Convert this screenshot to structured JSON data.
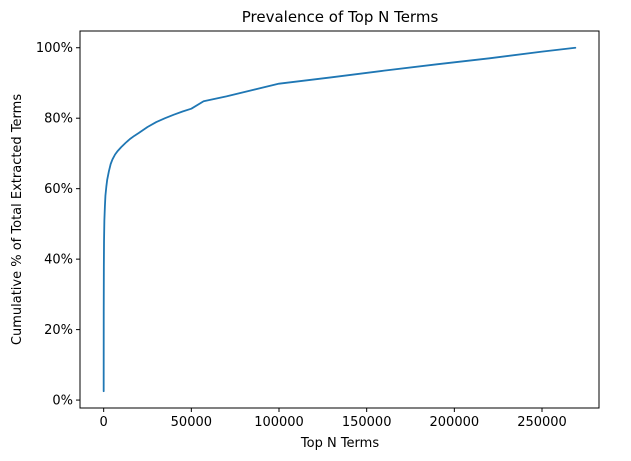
{
  "colors": {
    "line": "#1f77b4",
    "axes": "#000000",
    "background": "#ffffff"
  },
  "chart_data": {
    "type": "line",
    "title": "Prevalence of Top N Terms",
    "xlabel": "Top N Terms",
    "ylabel": "Cumulative % of Total Extracted Terms",
    "xlim": [
      -13500,
      282500
    ],
    "ylim": [
      -0.0225,
      1.0475
    ],
    "x_ticks": [
      0,
      50000,
      100000,
      150000,
      200000,
      250000
    ],
    "x_tick_labels": [
      "0",
      "50000",
      "100000",
      "150000",
      "200000",
      "250000"
    ],
    "y_ticks": [
      0,
      0.2,
      0.4,
      0.6,
      0.8,
      1.0
    ],
    "y_tick_labels": [
      "0%",
      "20%",
      "40%",
      "60%",
      "80%",
      "100%"
    ],
    "grid": false,
    "legend": "none",
    "series": [
      {
        "x": [
          1,
          30,
          100,
          200,
          400,
          700,
          1000,
          1500,
          2000,
          3000,
          4000,
          5000,
          6500,
          8000,
          10000,
          12500,
          15000,
          17500,
          20000,
          25000,
          30000,
          35000,
          40000,
          45000,
          50000,
          57000,
          70000,
          85000,
          100000,
          130000,
          160000,
          190000,
          220000,
          250000,
          269000
        ],
        "y": [
          0.025,
          0.25,
          0.38,
          0.45,
          0.51,
          0.55,
          0.58,
          0.605,
          0.625,
          0.65,
          0.67,
          0.683,
          0.697,
          0.707,
          0.718,
          0.73,
          0.741,
          0.75,
          0.758,
          0.775,
          0.789,
          0.8,
          0.81,
          0.819,
          0.827,
          0.848,
          0.862,
          0.88,
          0.898,
          0.916,
          0.935,
          0.953,
          0.97,
          0.989,
          1.0
        ]
      }
    ]
  }
}
